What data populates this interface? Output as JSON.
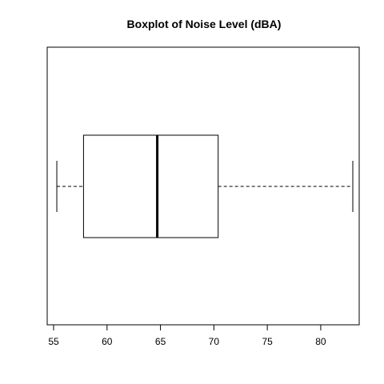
{
  "chart_data": {
    "type": "boxplot",
    "orientation": "horizontal",
    "title": "Boxplot of Noise Level (dBA)",
    "xlabel": "",
    "ylabel": "",
    "xlim": [
      54.4,
      83.6
    ],
    "xticks": [
      55,
      60,
      65,
      70,
      75,
      80
    ],
    "box": {
      "whisker_low": 55.3,
      "q1": 57.8,
      "median": 64.7,
      "q3": 70.4,
      "whisker_high": 83.0
    },
    "grid": false,
    "legend": "none"
  }
}
